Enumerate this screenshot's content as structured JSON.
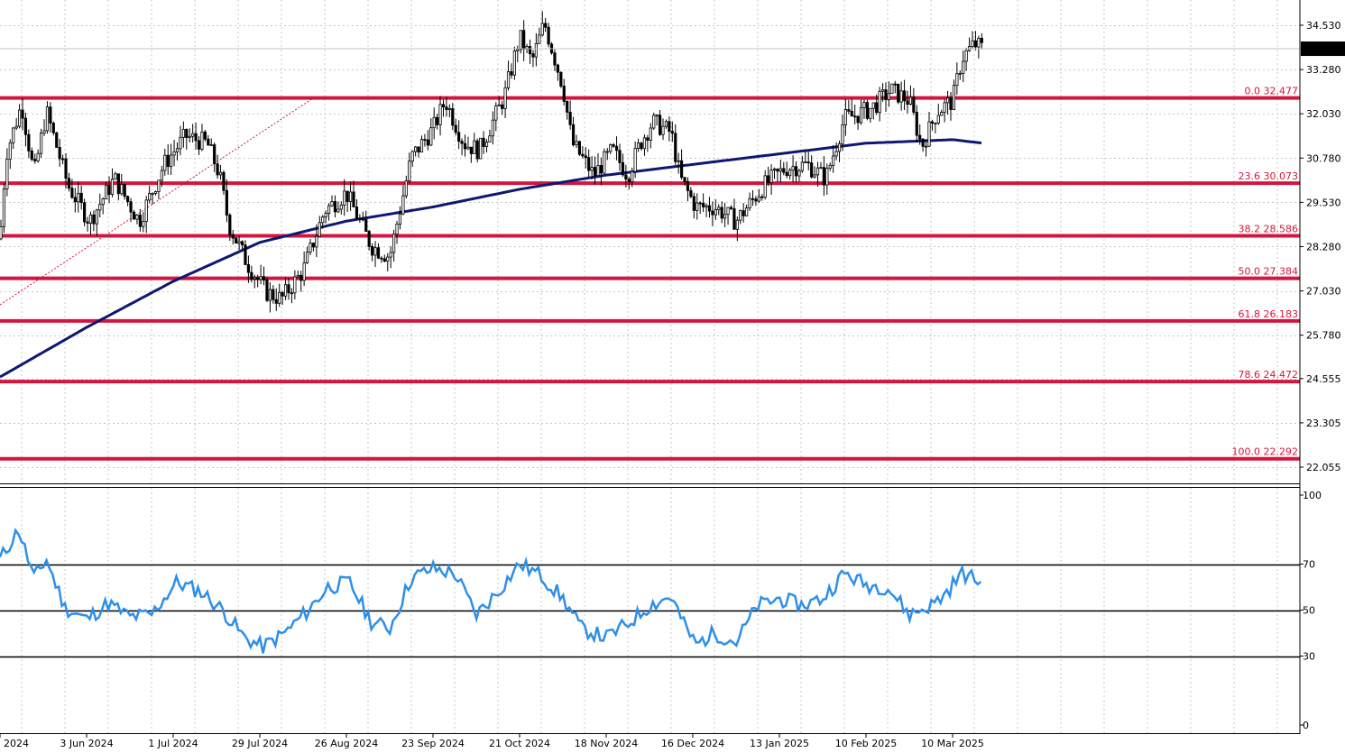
{
  "chart_data": [
    {
      "type": "candlestick",
      "title": "",
      "ylim": [
        21.5,
        35.1
      ],
      "grid": true,
      "price_axis_ticks": [
        "34.530",
        "33.280",
        "32.030",
        "30.780",
        "29.530",
        "28.280",
        "27.030",
        "25.780",
        "24.555",
        "23.305",
        "22.055"
      ],
      "price_axis_tick_values": [
        34.53,
        33.28,
        32.03,
        30.78,
        29.53,
        28.28,
        27.03,
        25.78,
        24.555,
        23.305,
        22.055
      ],
      "current_price": "33.867",
      "current_price_value": 33.867,
      "date_ticks": [
        "2024",
        "3 Jun 2024",
        "1 Jul 2024",
        "29 Jul 2024",
        "26 Aug 2024",
        "23 Sep 2024",
        "21 Oct 2024",
        "18 Nov 2024",
        "16 Dec 2024",
        "13 Jan 2025",
        "10 Feb 2025",
        "10 Mar 2025"
      ],
      "fibonacci_levels": [
        {
          "label": "0.0 32.477",
          "value": 32.477
        },
        {
          "label": "23.6 30.073",
          "value": 30.073
        },
        {
          "label": "38.2 28.586",
          "value": 28.586
        },
        {
          "label": "50.0 27.384",
          "value": 27.384
        },
        {
          "label": "61.8 26.183",
          "value": 26.183
        },
        {
          "label": "78.6 24.472",
          "value": 24.472
        },
        {
          "label": "100.0 22.292",
          "value": 22.292
        }
      ],
      "price_anchors": [
        {
          "date": "2024-05-06",
          "value": 28.5
        },
        {
          "date": "2024-05-08",
          "value": 30.9
        },
        {
          "date": "2024-05-13",
          "value": 32.3
        },
        {
          "date": "2024-05-17",
          "value": 30.3
        },
        {
          "date": "2024-05-21",
          "value": 32.1
        },
        {
          "date": "2024-05-28",
          "value": 30.0
        },
        {
          "date": "2024-06-04",
          "value": 29.0
        },
        {
          "date": "2024-06-12",
          "value": 30.2
        },
        {
          "date": "2024-06-20",
          "value": 29.0
        },
        {
          "date": "2024-06-28",
          "value": 30.6
        },
        {
          "date": "2024-07-05",
          "value": 31.4
        },
        {
          "date": "2024-07-12",
          "value": 31.2
        },
        {
          "date": "2024-07-16",
          "value": 30.3
        },
        {
          "date": "2024-07-19",
          "value": 28.9
        },
        {
          "date": "2024-07-25",
          "value": 27.8
        },
        {
          "date": "2024-07-31",
          "value": 27.0
        },
        {
          "date": "2024-08-05",
          "value": 26.8
        },
        {
          "date": "2024-08-12",
          "value": 27.6
        },
        {
          "date": "2024-08-19",
          "value": 29.3
        },
        {
          "date": "2024-08-26",
          "value": 29.8
        },
        {
          "date": "2024-09-03",
          "value": 28.3
        },
        {
          "date": "2024-09-09",
          "value": 28.0
        },
        {
          "date": "2024-09-16",
          "value": 30.8
        },
        {
          "date": "2024-09-23",
          "value": 31.6
        },
        {
          "date": "2024-09-27",
          "value": 32.4
        },
        {
          "date": "2024-10-03",
          "value": 31.2
        },
        {
          "date": "2024-10-08",
          "value": 31.0
        },
        {
          "date": "2024-10-16",
          "value": 32.5
        },
        {
          "date": "2024-10-21",
          "value": 34.2
        },
        {
          "date": "2024-10-25",
          "value": 33.5
        },
        {
          "date": "2024-10-29",
          "value": 34.6
        },
        {
          "date": "2024-11-04",
          "value": 32.8
        },
        {
          "date": "2024-11-07",
          "value": 31.2
        },
        {
          "date": "2024-11-14",
          "value": 30.3
        },
        {
          "date": "2024-11-20",
          "value": 31.0
        },
        {
          "date": "2024-11-25",
          "value": 30.3
        },
        {
          "date": "2024-11-29",
          "value": 31.2
        },
        {
          "date": "2024-12-03",
          "value": 31.8
        },
        {
          "date": "2024-12-09",
          "value": 31.5
        },
        {
          "date": "2024-12-12",
          "value": 30.2
        },
        {
          "date": "2024-12-17",
          "value": 29.4
        },
        {
          "date": "2024-12-23",
          "value": 29.4
        },
        {
          "date": "2024-12-30",
          "value": 29.0
        },
        {
          "date": "2025-01-08",
          "value": 30.0
        },
        {
          "date": "2025-01-15",
          "value": 30.5
        },
        {
          "date": "2025-01-22",
          "value": 30.6
        },
        {
          "date": "2025-01-28",
          "value": 30.2
        },
        {
          "date": "2025-02-03",
          "value": 31.9
        },
        {
          "date": "2025-02-07",
          "value": 32.0
        },
        {
          "date": "2025-02-12",
          "value": 32.2
        },
        {
          "date": "2025-02-18",
          "value": 32.7
        },
        {
          "date": "2025-02-24",
          "value": 32.4
        },
        {
          "date": "2025-02-28",
          "value": 31.1
        },
        {
          "date": "2025-03-05",
          "value": 32.1
        },
        {
          "date": "2025-03-10",
          "value": 32.4
        },
        {
          "date": "2025-03-13",
          "value": 33.6
        },
        {
          "date": "2025-03-17",
          "value": 34.0
        },
        {
          "date": "2025-03-20",
          "value": 33.87
        }
      ],
      "moving_average": [
        {
          "date": "2024-05-06",
          "value": 24.6
        },
        {
          "date": "2024-06-03",
          "value": 26.0
        },
        {
          "date": "2024-07-01",
          "value": 27.3
        },
        {
          "date": "2024-07-29",
          "value": 28.4
        },
        {
          "date": "2024-08-26",
          "value": 29.0
        },
        {
          "date": "2024-09-23",
          "value": 29.4
        },
        {
          "date": "2024-10-21",
          "value": 29.9
        },
        {
          "date": "2024-11-18",
          "value": 30.3
        },
        {
          "date": "2024-12-16",
          "value": 30.6
        },
        {
          "date": "2025-01-13",
          "value": 30.9
        },
        {
          "date": "2025-02-10",
          "value": 31.2
        },
        {
          "date": "2025-03-10",
          "value": 31.3
        },
        {
          "date": "2025-03-20",
          "value": 31.2
        }
      ]
    },
    {
      "type": "line",
      "title": "",
      "ylim": [
        0,
        100
      ],
      "axis_ticks": [
        "100",
        "70",
        "50",
        "30",
        "0"
      ],
      "axis_tick_values": [
        100,
        70,
        50,
        30,
        0
      ],
      "levels": [
        70,
        50,
        30
      ],
      "rsi": [
        {
          "date": "2024-05-06",
          "value": 72
        },
        {
          "date": "2024-05-12",
          "value": 85
        },
        {
          "date": "2024-05-17",
          "value": 64
        },
        {
          "date": "2024-05-21",
          "value": 72
        },
        {
          "date": "2024-05-27",
          "value": 51
        },
        {
          "date": "2024-06-03",
          "value": 46
        },
        {
          "date": "2024-06-10",
          "value": 53
        },
        {
          "date": "2024-06-17",
          "value": 47
        },
        {
          "date": "2024-06-24",
          "value": 48
        },
        {
          "date": "2024-07-02",
          "value": 62
        },
        {
          "date": "2024-07-10",
          "value": 58
        },
        {
          "date": "2024-07-17",
          "value": 50
        },
        {
          "date": "2024-07-24",
          "value": 38
        },
        {
          "date": "2024-07-30",
          "value": 34
        },
        {
          "date": "2024-08-06",
          "value": 40
        },
        {
          "date": "2024-08-13",
          "value": 49
        },
        {
          "date": "2024-08-20",
          "value": 60
        },
        {
          "date": "2024-08-27",
          "value": 62
        },
        {
          "date": "2024-09-03",
          "value": 45
        },
        {
          "date": "2024-09-09",
          "value": 42
        },
        {
          "date": "2024-09-16",
          "value": 64
        },
        {
          "date": "2024-09-23",
          "value": 68
        },
        {
          "date": "2024-09-30",
          "value": 66
        },
        {
          "date": "2024-10-07",
          "value": 48
        },
        {
          "date": "2024-10-14",
          "value": 58
        },
        {
          "date": "2024-10-21",
          "value": 70
        },
        {
          "date": "2024-10-28",
          "value": 65
        },
        {
          "date": "2024-11-04",
          "value": 55
        },
        {
          "date": "2024-11-10",
          "value": 42
        },
        {
          "date": "2024-11-18",
          "value": 38
        },
        {
          "date": "2024-11-25",
          "value": 44
        },
        {
          "date": "2024-12-02",
          "value": 52
        },
        {
          "date": "2024-12-09",
          "value": 56
        },
        {
          "date": "2024-12-13",
          "value": 44
        },
        {
          "date": "2024-12-17",
          "value": 35
        },
        {
          "date": "2024-12-23",
          "value": 40
        },
        {
          "date": "2024-12-30",
          "value": 36
        },
        {
          "date": "2025-01-06",
          "value": 52
        },
        {
          "date": "2025-01-13",
          "value": 55
        },
        {
          "date": "2025-01-20",
          "value": 52
        },
        {
          "date": "2025-01-27",
          "value": 55
        },
        {
          "date": "2025-02-03",
          "value": 66
        },
        {
          "date": "2025-02-10",
          "value": 61
        },
        {
          "date": "2025-02-17",
          "value": 60
        },
        {
          "date": "2025-02-24",
          "value": 48
        },
        {
          "date": "2025-03-03",
          "value": 52
        },
        {
          "date": "2025-03-07",
          "value": 56
        },
        {
          "date": "2025-03-13",
          "value": 66
        },
        {
          "date": "2025-03-18",
          "value": 63
        },
        {
          "date": "2025-03-20",
          "value": 62
        }
      ]
    }
  ],
  "colors": {
    "fib_line": "#d3163f",
    "fib_label": "#d3163f",
    "moving_average": "#0d1870",
    "rsi_line": "#2f8fe8",
    "candle": "#000000",
    "grid": "#c8c8c8",
    "trend_line": "#d3163f",
    "price_tag_bg": "#000000",
    "price_tag_text": "#ffffff"
  }
}
